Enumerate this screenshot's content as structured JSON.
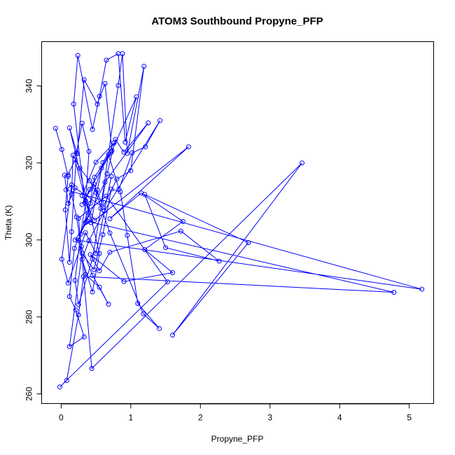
{
  "chart_data": {
    "type": "line",
    "title": "ATOM3 Southbound Propyne_PFP",
    "xlabel": "Propyne_PFP",
    "ylabel": "Theta (K)",
    "xlim": [
      -0.28,
      5.35
    ],
    "ylim": [
      257.5,
      351.5
    ],
    "xticks": [
      0,
      1,
      2,
      3,
      4,
      5
    ],
    "xtick_labels": [
      "0",
      "1",
      "2",
      "3",
      "4",
      "5"
    ],
    "yticks": [
      260,
      280,
      300,
      320,
      340
    ],
    "ytick_labels": [
      "260",
      "280",
      "300",
      "320",
      "340"
    ],
    "grid": false,
    "legend": "none",
    "color": "#0000ff",
    "series": [
      {
        "points": [
          [
            -0.08,
            329.0
          ],
          [
            0.01,
            323.5
          ],
          [
            0.1,
            316.5
          ],
          [
            0.06,
            307.8
          ],
          [
            0.12,
            294.2
          ],
          [
            0.15,
            302.1
          ],
          [
            0.22,
            322.6
          ],
          [
            0.3,
            330.3
          ],
          [
            0.4,
            323.0
          ],
          [
            0.35,
            309.5
          ],
          [
            0.28,
            301.5
          ],
          [
            0.2,
            289.5
          ],
          [
            0.25,
            283.2
          ],
          [
            0.45,
            295.0
          ],
          [
            0.57,
            308.2
          ],
          [
            0.66,
            317.2
          ],
          [
            0.78,
            326.1
          ],
          [
            0.9,
            322.8
          ],
          [
            1.25,
            330.4
          ],
          [
            0.63,
            315.0
          ],
          [
            0.35,
            304.5
          ],
          [
            0.19,
            297.8
          ],
          [
            0.12,
            285.3
          ],
          [
            0.21,
            281.8
          ],
          [
            0.33,
            274.8
          ],
          [
            0.12,
            272.3
          ],
          [
            0.3,
            296.5
          ],
          [
            0.47,
            292.3
          ],
          [
            0.6,
            301.4
          ],
          [
            0.72,
            313.2
          ],
          [
            0.85,
            312.5
          ],
          [
            0.95,
            301.2
          ],
          [
            1.1,
            283.5
          ],
          [
            1.41,
            277.0
          ],
          [
            1.18,
            280.8
          ],
          [
            0.7,
            301.8
          ],
          [
            0.5,
            312.3
          ],
          [
            0.41,
            315.4
          ],
          [
            0.27,
            318.6
          ],
          [
            0.17,
            322.0
          ],
          [
            0.15,
            311.9
          ],
          [
            0.22,
            306.0
          ],
          [
            0.29,
            298.3
          ],
          [
            0.45,
            290.8
          ],
          [
            0.68,
            283.3
          ],
          [
            0.55,
            287.7
          ],
          [
            0.35,
            291.0
          ],
          [
            0.25,
            299.9
          ],
          [
            0.42,
            309.5
          ],
          [
            0.58,
            318.7
          ],
          [
            0.68,
            322.2
          ],
          [
            0.83,
            313.2
          ],
          [
            1.02,
            322.6
          ],
          [
            1.21,
            324.2
          ],
          [
            1.42,
            331.0
          ],
          [
            0.62,
            307.5
          ],
          [
            0.4,
            299.8
          ],
          [
            0.3,
            295.0
          ],
          [
            0.45,
            286.5
          ],
          [
            0.55,
            296.5
          ],
          [
            0.12,
            329.1
          ],
          [
            0.23,
            322.4
          ],
          [
            0.33,
            341.6
          ],
          [
            0.52,
            335.3
          ],
          [
            0.63,
            340.6
          ],
          [
            0.73,
            323.2
          ],
          [
            0.48,
            316.3
          ],
          [
            0.37,
            304.9
          ],
          [
            0.18,
            335.3
          ],
          [
            0.24,
            347.9
          ],
          [
            0.45,
            328.7
          ],
          [
            0.55,
            337.3
          ],
          [
            0.65,
            346.7
          ],
          [
            0.82,
            348.4
          ],
          [
            0.92,
            325.4
          ],
          [
            1.08,
            337.2
          ],
          [
            0.72,
            322.8
          ],
          [
            0.41,
            313.1
          ],
          [
            0.3,
            309.2
          ],
          [
            0.47,
            314.5
          ],
          [
            0.58,
            309.8
          ],
          [
            0.82,
            340.1
          ],
          [
            0.88,
            348.4
          ],
          [
            0.95,
            322.5
          ],
          [
            1.19,
            345.1
          ],
          [
            1.0,
            318.0
          ],
          [
            0.8,
            315.8
          ],
          [
            0.6,
            308.5
          ],
          [
            0.2,
            313.5
          ],
          [
            0.1,
            309.5
          ],
          [
            0.05,
            316.8
          ],
          [
            0.1,
            316.9
          ],
          [
            0.2,
            320.8
          ],
          [
            0.35,
            310.2
          ],
          [
            0.43,
            304.5
          ],
          [
            0.52,
            313.0
          ],
          [
            0.6,
            320.1
          ],
          [
            0.76,
            325.2
          ],
          [
            0.5,
            320.2
          ],
          [
            0.3,
            311.5
          ],
          [
            0.48,
            305.1
          ],
          [
            1.83,
            324.2
          ],
          [
            0.7,
            305.5
          ],
          [
            1.15,
            312.2
          ],
          [
            1.75,
            304.8
          ],
          [
            1.2,
            297.5
          ],
          [
            1.6,
            291.5
          ],
          [
            0.9,
            289.2
          ],
          [
            0.42,
            296.2
          ],
          [
            0.55,
            292.0
          ],
          [
            0.7,
            296.8
          ],
          [
            1.72,
            302.3
          ],
          [
            2.27,
            294.5
          ],
          [
            1.5,
            298.0
          ],
          [
            1.2,
            311.8
          ],
          [
            2.69,
            299.3
          ],
          [
            1.6,
            275.3
          ],
          [
            3.46,
            320.0
          ],
          [
            0.44,
            266.6
          ],
          [
            0.25,
            305.6
          ],
          [
            0.65,
            311.4
          ],
          [
            1.53,
            289.1
          ],
          [
            -0.02,
            261.8
          ],
          [
            0.08,
            263.5
          ],
          [
            0.25,
            280.5
          ],
          [
            0.32,
            290.5
          ],
          [
            4.78,
            286.4
          ],
          [
            0.38,
            304.8
          ],
          [
            0.2,
            300.0
          ],
          [
            5.18,
            287.2
          ],
          [
            0.07,
            313.0
          ],
          [
            0.15,
            314.3
          ],
          [
            0.01,
            295.0
          ],
          [
            0.1,
            288.8
          ],
          [
            0.35,
            301.9
          ],
          [
            0.5,
            296.5
          ],
          [
            0.72,
            316.5
          ]
        ]
      }
    ]
  }
}
